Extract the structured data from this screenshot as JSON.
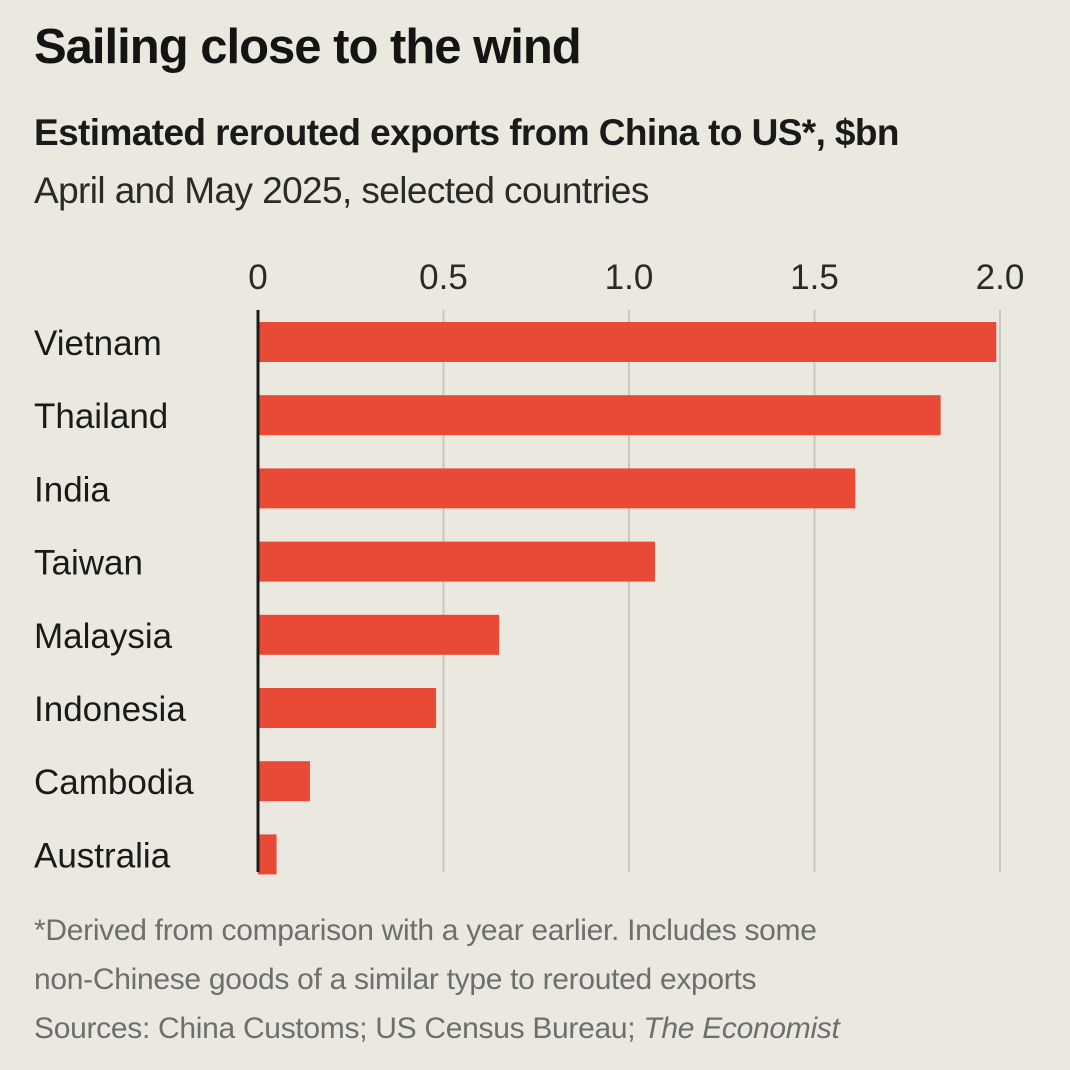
{
  "title": "Sailing close to the wind",
  "subtitle": "Estimated rerouted exports from China to US*, $bn",
  "subtitle2": "April and May 2025, selected countries",
  "footnote": {
    "line1": "*Derived from comparison with a year earlier. Includes some",
    "line2": "non-Chinese goods of a similar type to rerouted exports",
    "sources_prefix": "Sources: China Customs; US Census Bureau;",
    "sources_italic": "The Economist"
  },
  "colors": {
    "bar": "#e84a35",
    "grid": "#c9c7bd",
    "axis": "#1a1a1a",
    "background": "#ebe9df"
  },
  "chart_data": {
    "type": "bar",
    "orientation": "horizontal",
    "title": "Sailing close to the wind",
    "subtitle": "Estimated rerouted exports from China to US*, $bn",
    "categories": [
      "Vietnam",
      "Thailand",
      "India",
      "Taiwan",
      "Malaysia",
      "Indonesia",
      "Cambodia",
      "Australia"
    ],
    "values": [
      1.99,
      1.84,
      1.61,
      1.07,
      0.65,
      0.48,
      0.14,
      0.05
    ],
    "xlim": [
      0,
      2.0
    ],
    "ticks": [
      0,
      0.5,
      1.0,
      1.5,
      2.0
    ],
    "tick_labels": [
      "0",
      "0.5",
      "1.0",
      "1.5",
      "2.0"
    ],
    "xlabel": "",
    "ylabel": "",
    "grid": true
  }
}
